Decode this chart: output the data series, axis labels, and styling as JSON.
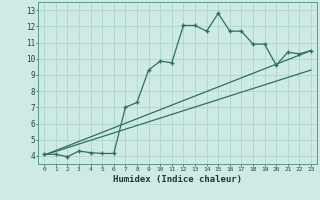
{
  "xlabel": "Humidex (Indice chaleur)",
  "bg_color": "#ceeae6",
  "grid_color": "#afd4cf",
  "line_color": "#2d7060",
  "xlim": [
    -0.5,
    23.5
  ],
  "ylim": [
    3.5,
    13.5
  ],
  "xticks": [
    0,
    1,
    2,
    3,
    4,
    5,
    6,
    7,
    8,
    9,
    10,
    11,
    12,
    13,
    14,
    15,
    16,
    17,
    18,
    19,
    20,
    21,
    22,
    23
  ],
  "yticks": [
    4,
    5,
    6,
    7,
    8,
    9,
    10,
    11,
    12,
    13
  ],
  "series1_x": [
    0,
    1,
    2,
    3,
    4,
    5,
    6,
    7,
    8,
    9,
    10,
    11,
    12,
    13,
    14,
    15,
    16,
    17,
    18,
    19,
    20,
    21,
    22,
    23
  ],
  "series1_y": [
    4.1,
    4.1,
    3.95,
    4.3,
    4.2,
    4.15,
    4.15,
    7.0,
    7.3,
    9.3,
    9.85,
    9.75,
    12.05,
    12.05,
    11.7,
    12.8,
    11.7,
    11.7,
    10.9,
    10.9,
    9.6,
    10.4,
    10.3,
    10.5
  ],
  "series2_x": [
    0,
    23
  ],
  "series2_y": [
    4.05,
    10.5
  ],
  "series3_x": [
    0,
    23
  ],
  "series3_y": [
    4.05,
    9.3
  ]
}
